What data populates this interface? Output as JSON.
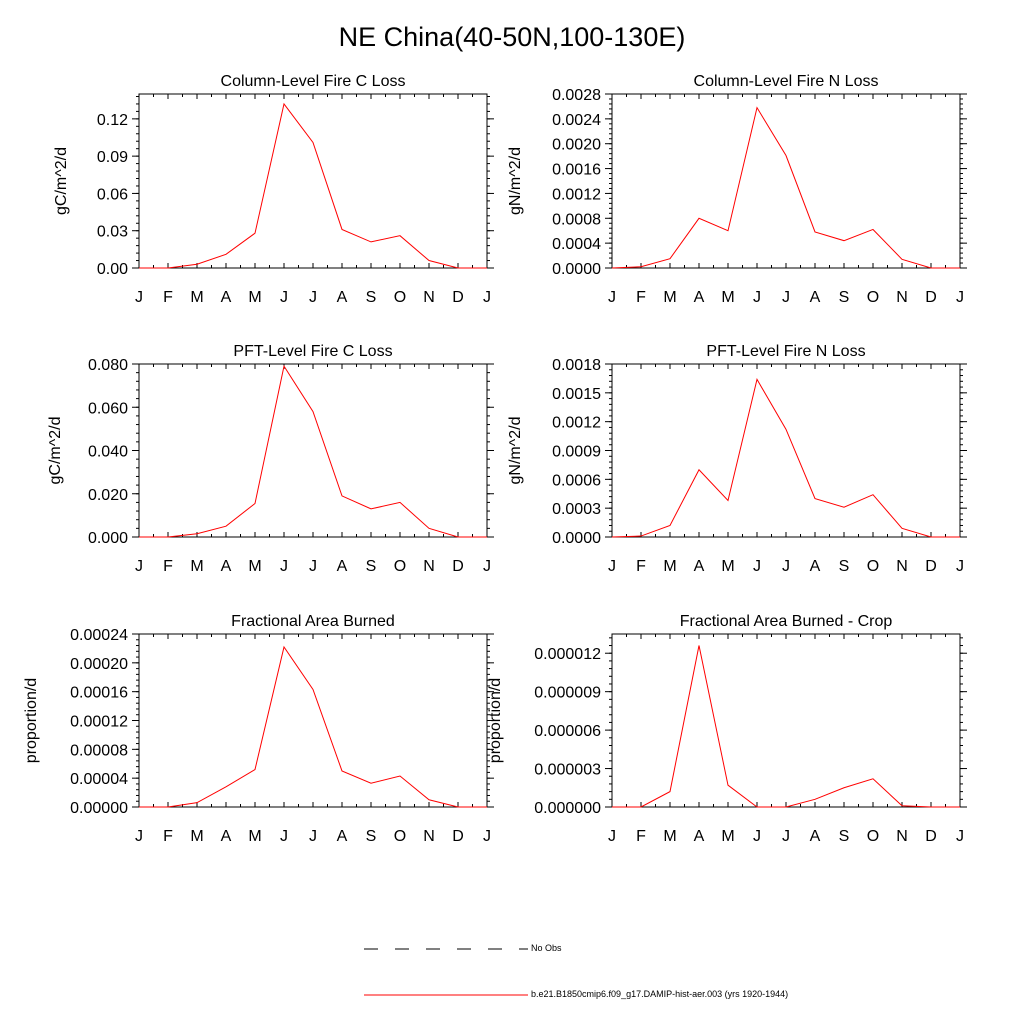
{
  "page": {
    "title": "NE China(40-50N,100-130E)"
  },
  "months": [
    "J",
    "F",
    "M",
    "A",
    "M",
    "J",
    "J",
    "A",
    "S",
    "O",
    "N",
    "D",
    "J"
  ],
  "chart_data": [
    {
      "type": "line",
      "title": "Column-Level Fire C Loss",
      "ylabel": "gC/m^2/d",
      "ylim": [
        0,
        0.14
      ],
      "yticks": [
        0,
        0.03,
        0.06,
        0.09,
        0.12
      ],
      "ytick_labels": [
        "0.00",
        "0.03",
        "0.06",
        "0.09",
        "0.12"
      ],
      "series": [
        {
          "name": "b.e21.B1850cmip6.f09_g17.DAMIP-hist-aer.003 (yrs 1920-1944)",
          "color": "#ff0000",
          "values": [
            0,
            0,
            0.003,
            0.011,
            0.028,
            0.132,
            0.101,
            0.031,
            0.021,
            0.026,
            0.006,
            0,
            0
          ]
        }
      ]
    },
    {
      "type": "line",
      "title": "Column-Level Fire N Loss",
      "ylabel": "gN/m^2/d",
      "ylim": [
        0,
        0.0028
      ],
      "yticks": [
        0,
        0.0004,
        0.0008,
        0.0012,
        0.0016,
        0.002,
        0.0024,
        0.0028
      ],
      "ytick_labels": [
        "0.0000",
        "0.0004",
        "0.0008",
        "0.0012",
        "0.0016",
        "0.0020",
        "0.0024",
        "0.0028"
      ],
      "series": [
        {
          "name": "b.e21.B1850cmip6.f09_g17.DAMIP-hist-aer.003 (yrs 1920-1944)",
          "color": "#ff0000",
          "values": [
            0,
            2e-05,
            0.00015,
            0.0008,
            0.0006,
            0.00258,
            0.00181,
            0.00058,
            0.00044,
            0.00062,
            0.00014,
            0,
            0
          ]
        }
      ]
    },
    {
      "type": "line",
      "title": "PFT-Level Fire C Loss",
      "ylabel": "gC/m^2/d",
      "ylim": [
        0,
        0.08
      ],
      "yticks": [
        0,
        0.02,
        0.04,
        0.06,
        0.08
      ],
      "ytick_labels": [
        "0.000",
        "0.020",
        "0.040",
        "0.060",
        "0.080"
      ],
      "series": [
        {
          "name": "b.e21.B1850cmip6.f09_g17.DAMIP-hist-aer.003 (yrs 1920-1944)",
          "color": "#ff0000",
          "values": [
            0,
            0,
            0.0015,
            0.005,
            0.0155,
            0.079,
            0.058,
            0.019,
            0.013,
            0.016,
            0.004,
            0,
            0
          ]
        }
      ]
    },
    {
      "type": "line",
      "title": "PFT-Level Fire N Loss",
      "ylabel": "gN/m^2/d",
      "ylim": [
        0,
        0.0018
      ],
      "yticks": [
        0,
        0.0003,
        0.0006,
        0.0009,
        0.0012,
        0.0015,
        0.0018
      ],
      "ytick_labels": [
        "0.0000",
        "0.0003",
        "0.0006",
        "0.0009",
        "0.0012",
        "0.0015",
        "0.0018"
      ],
      "series": [
        {
          "name": "b.e21.B1850cmip6.f09_g17.DAMIP-hist-aer.003 (yrs 1920-1944)",
          "color": "#ff0000",
          "values": [
            0,
            1e-05,
            0.00012,
            0.0007,
            0.00038,
            0.00164,
            0.00112,
            0.0004,
            0.00031,
            0.00044,
            9e-05,
            0,
            0
          ]
        }
      ]
    },
    {
      "type": "line",
      "title": "Fractional Area Burned",
      "ylabel": "proportion/d",
      "ylim": [
        0,
        0.00024
      ],
      "yticks": [
        0,
        4e-05,
        8e-05,
        0.00012,
        0.00016,
        0.0002,
        0.00024
      ],
      "ytick_labels": [
        "0.00000",
        "0.00004",
        "0.00008",
        "0.00012",
        "0.00016",
        "0.00020",
        "0.00024"
      ],
      "series": [
        {
          "name": "b.e21.B1850cmip6.f09_g17.DAMIP-hist-aer.003 (yrs 1920-1944)",
          "color": "#ff0000",
          "values": [
            0,
            0,
            6e-06,
            2.8e-05,
            5.2e-05,
            0.000222,
            0.000163,
            5e-05,
            3.3e-05,
            4.3e-05,
            1e-05,
            0,
            0
          ]
        }
      ]
    },
    {
      "type": "line",
      "title": "Fractional Area Burned - Crop",
      "ylabel": "proportion/d",
      "ylim": [
        0,
        1.35e-05
      ],
      "yticks": [
        0,
        3e-06,
        6e-06,
        9e-06,
        1.2e-05
      ],
      "ytick_labels": [
        "0.000000",
        "0.000003",
        "0.000006",
        "0.000009",
        "0.000012"
      ],
      "series": [
        {
          "name": "b.e21.B1850cmip6.f09_g17.DAMIP-hist-aer.003 (yrs 1920-1944)",
          "color": "#ff0000",
          "values": [
            0,
            0,
            1.2e-06,
            1.26e-05,
            1.7e-06,
            0,
            0,
            6e-07,
            1.5e-06,
            2.2e-06,
            1e-07,
            0,
            0
          ]
        }
      ]
    }
  ],
  "legend": {
    "items": [
      {
        "label": "No Obs",
        "style": "dashed",
        "color": "#000000"
      },
      {
        "label": "b.e21.B1850cmip6.f09_g17.DAMIP-hist-aer.003 (yrs 1920-1944)",
        "style": "solid",
        "color": "#ff0000"
      }
    ]
  }
}
